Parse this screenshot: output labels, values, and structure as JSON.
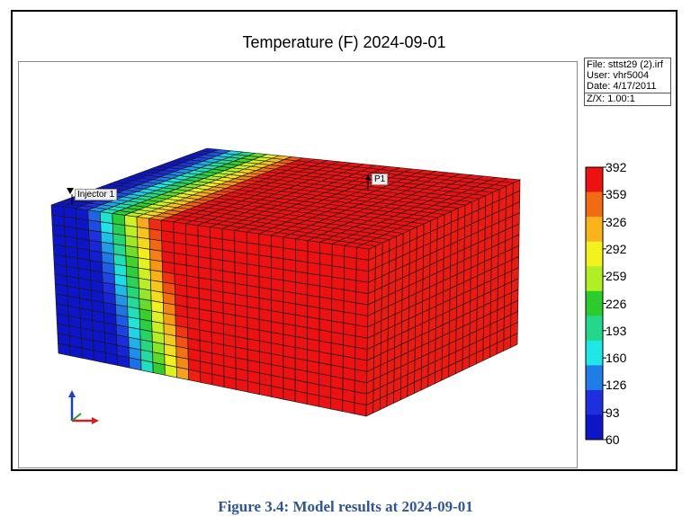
{
  "title": "Temperature (F) 2024-09-01",
  "info": {
    "file": "File: sttst29 (2).irf",
    "user": "User:  vhr5004",
    "date": "Date: 4/17/2011",
    "zx": "Z/X: 1.00:1"
  },
  "legend": {
    "ticks": [
      "392",
      "359",
      "326",
      "292",
      "259",
      "226",
      "193",
      "160",
      "126",
      "93",
      "60"
    ],
    "colors": [
      "#ee1111",
      "#f26a12",
      "#f8b418",
      "#f2f21f",
      "#b2ef22",
      "#2ccc2c",
      "#23d88a",
      "#1ee7e7",
      "#1e7de8",
      "#1e2fe0",
      "#0d15c8"
    ]
  },
  "wells": {
    "injector": "Injector 1",
    "producer": "P1"
  },
  "grid": {
    "cols_front": 26,
    "rows": 15,
    "depth_cells": 22
  },
  "caption": "Figure 3.4: Model results at 2024-09-01"
}
